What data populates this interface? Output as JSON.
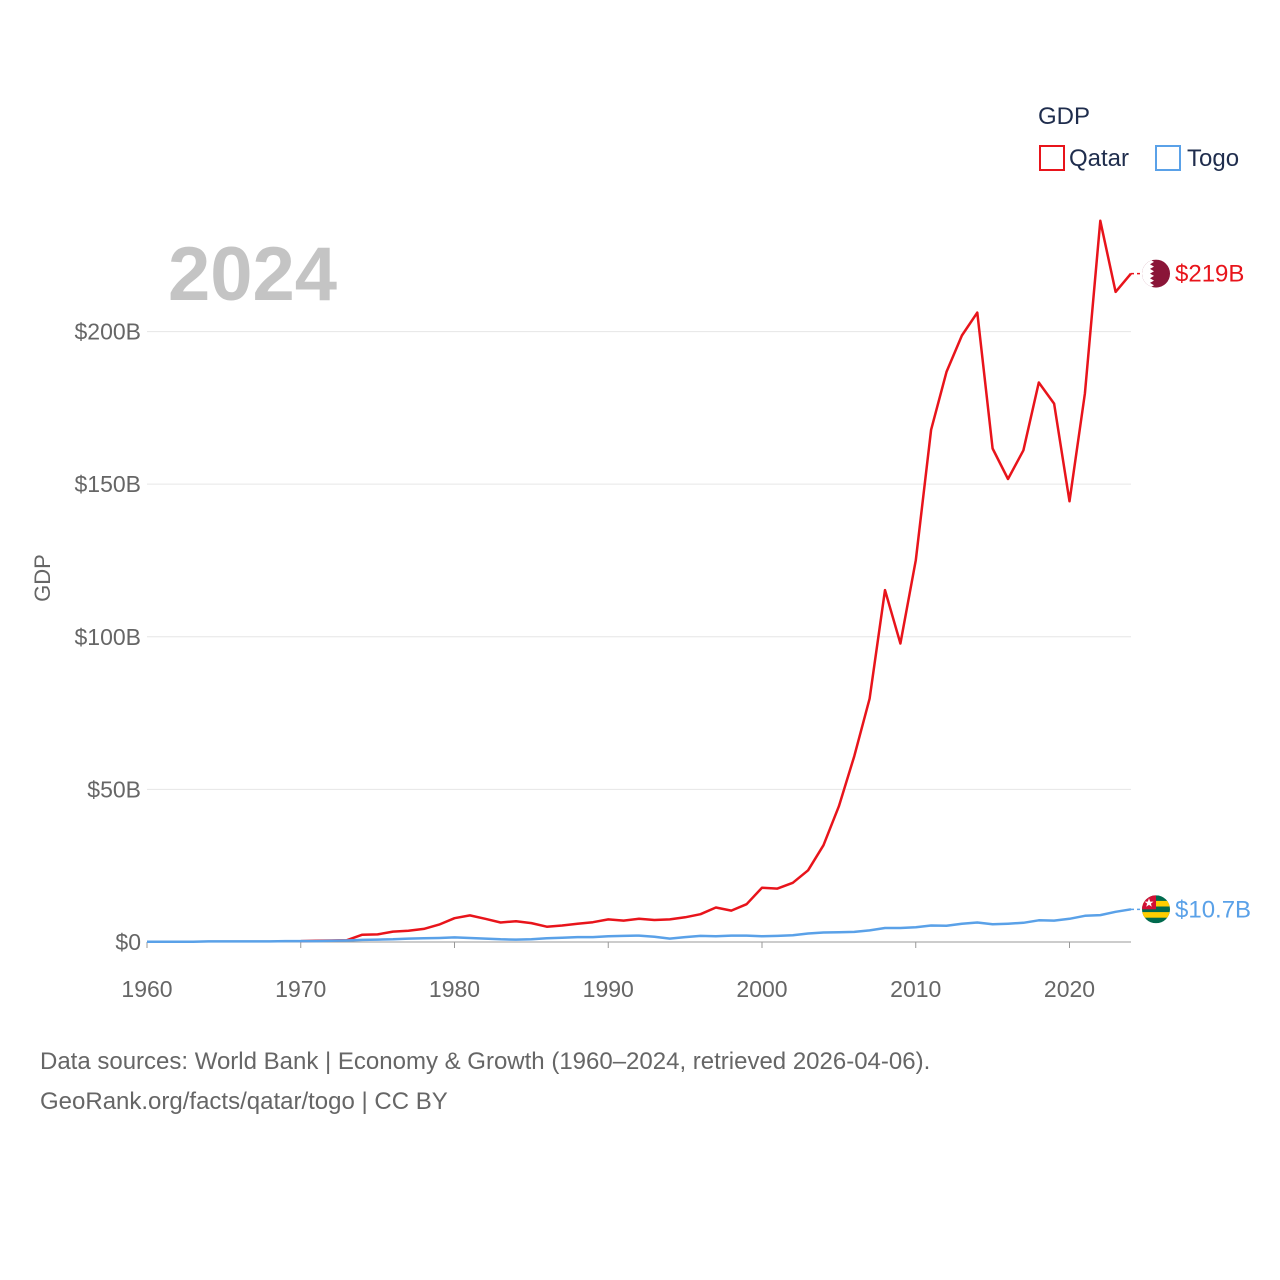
{
  "chart_data": {
    "type": "line",
    "year_label": "2024",
    "ylabel": "GDP",
    "legend_title": "GDP",
    "ylim": [
      0,
      230
    ],
    "xlim": [
      1960,
      2024
    ],
    "y_ticks": [
      {
        "value": 0,
        "label": "$0"
      },
      {
        "value": 50,
        "label": "$50B"
      },
      {
        "value": 100,
        "label": "$100B"
      },
      {
        "value": 150,
        "label": "$150B"
      },
      {
        "value": 200,
        "label": "$200B"
      }
    ],
    "x_ticks": [
      {
        "value": 1960,
        "label": "1960"
      },
      {
        "value": 1970,
        "label": "1970"
      },
      {
        "value": 1980,
        "label": "1980"
      },
      {
        "value": 1990,
        "label": "1990"
      },
      {
        "value": 2000,
        "label": "2000"
      },
      {
        "value": 2010,
        "label": "2010"
      },
      {
        "value": 2020,
        "label": "2020"
      }
    ],
    "x": [
      1960,
      1961,
      1962,
      1963,
      1964,
      1965,
      1966,
      1967,
      1968,
      1969,
      1970,
      1971,
      1972,
      1973,
      1974,
      1975,
      1976,
      1977,
      1978,
      1979,
      1980,
      1981,
      1982,
      1983,
      1984,
      1985,
      1986,
      1987,
      1988,
      1989,
      1990,
      1991,
      1992,
      1993,
      1994,
      1995,
      1996,
      1997,
      1998,
      1999,
      2000,
      2001,
      2002,
      2003,
      2004,
      2005,
      2006,
      2007,
      2008,
      2009,
      2010,
      2011,
      2012,
      2013,
      2014,
      2015,
      2016,
      2017,
      2018,
      2019,
      2020,
      2021,
      2022,
      2023,
      2024
    ],
    "series": [
      {
        "name": "Qatar",
        "color": "#e8141b",
        "end_label": "$219B",
        "flag_icon": "qatar-flag-icon",
        "values": [
          null,
          null,
          null,
          null,
          null,
          null,
          null,
          null,
          null,
          null,
          0.3,
          0.4,
          0.5,
          0.6,
          2.4,
          2.5,
          3.4,
          3.7,
          4.3,
          5.7,
          7.8,
          8.7,
          7.6,
          6.4,
          6.8,
          6.2,
          5.0,
          5.4,
          6.0,
          6.5,
          7.4,
          7.0,
          7.6,
          7.2,
          7.4,
          8.1,
          9.1,
          11.3,
          10.3,
          12.4,
          17.8,
          17.5,
          19.4,
          23.5,
          31.7,
          44.5,
          60.9,
          79.7,
          115.3,
          97.8,
          125.1,
          167.8,
          186.8,
          198.7,
          206.2,
          161.7,
          151.7,
          161.1,
          183.3,
          176.4,
          144.4,
          179.7,
          236.3,
          213.0,
          219.0
        ]
      },
      {
        "name": "Togo",
        "color": "#5aa1e8",
        "end_label": "$10.7B",
        "flag_icon": "togo-flag-icon",
        "values": [
          0.1,
          0.1,
          0.1,
          0.1,
          0.2,
          0.2,
          0.2,
          0.2,
          0.2,
          0.3,
          0.3,
          0.3,
          0.4,
          0.5,
          0.7,
          0.8,
          0.9,
          1.1,
          1.2,
          1.3,
          1.5,
          1.3,
          1.1,
          0.9,
          0.8,
          0.9,
          1.2,
          1.4,
          1.6,
          1.6,
          1.9,
          2.0,
          2.1,
          1.7,
          1.1,
          1.6,
          2.0,
          1.9,
          2.1,
          2.1,
          1.9,
          2.0,
          2.2,
          2.8,
          3.1,
          3.2,
          3.3,
          3.8,
          4.6,
          4.6,
          4.8,
          5.4,
          5.3,
          6.0,
          6.4,
          5.8,
          6.0,
          6.3,
          7.1,
          7.0,
          7.6,
          8.6,
          8.8,
          9.9,
          10.7
        ]
      }
    ]
  },
  "footer": {
    "line1": "Data sources: World Bank | Economy & Growth (1960–2024, retrieved 2026-04-06).",
    "line2": "GeoRank.org/facts/qatar/togo | CC BY"
  }
}
